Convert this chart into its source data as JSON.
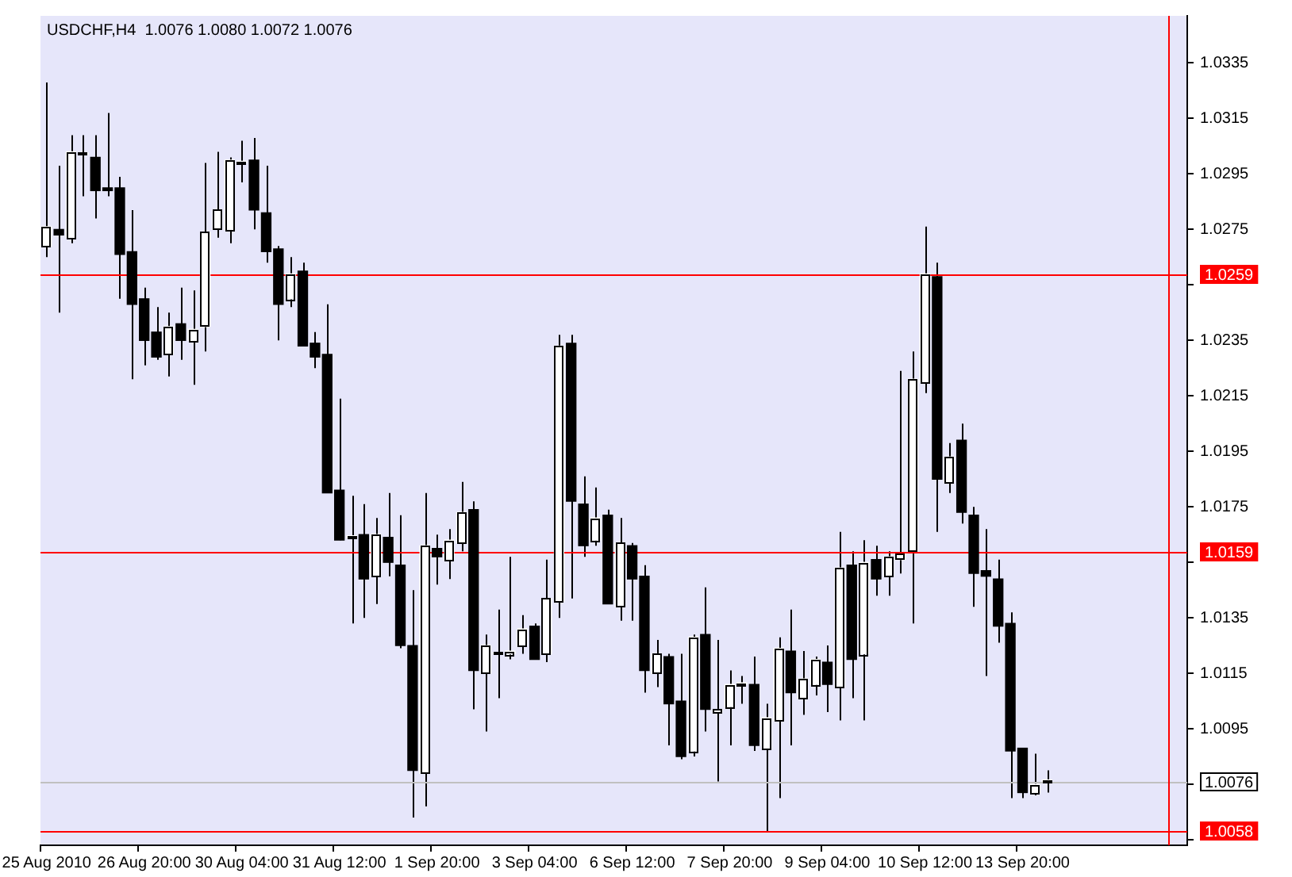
{
  "chart_data": {
    "type": "candlestick",
    "title": "USDCHF,H4  1.0076 1.0080 1.0072 1.0076",
    "categories": [
      "25 Aug 2010",
      null,
      null,
      null,
      null,
      null,
      null,
      null,
      "26 Aug 20:00",
      null,
      null,
      null,
      null,
      null,
      null,
      null,
      "30 Aug 04:00",
      null,
      null,
      null,
      null,
      null,
      null,
      null,
      "31 Aug 12:00",
      null,
      null,
      null,
      null,
      null,
      null,
      null,
      "1 Sep 20:00",
      null,
      null,
      null,
      null,
      null,
      null,
      null,
      "3 Sep 04:00",
      null,
      null,
      null,
      null,
      null,
      null,
      null,
      "6 Sep 12:00",
      null,
      null,
      null,
      null,
      null,
      null,
      null,
      "7 Sep 20:00",
      null,
      null,
      null,
      null,
      null,
      null,
      null,
      "9 Sep 04:00",
      null,
      null,
      null,
      null,
      null,
      null,
      null,
      "10 Sep 12:00",
      null,
      null,
      null,
      null,
      null,
      null,
      null,
      "13 Sep 20:00",
      null,
      null,
      null,
      null,
      null,
      null,
      null,
      null,
      null,
      null,
      null,
      null,
      null
    ],
    "ohlc": [
      [
        1.0269,
        1.0328,
        1.0265,
        1.0276
      ],
      [
        1.0275,
        1.0298,
        1.0245,
        1.0273
      ],
      [
        1.0272,
        1.0309,
        1.027,
        1.0303
      ],
      [
        1.0302,
        1.0309,
        1.0287,
        1.0302
      ],
      [
        1.0301,
        1.0309,
        1.0279,
        1.0289
      ],
      [
        1.029,
        1.0317,
        1.0287,
        1.0289
      ],
      [
        1.029,
        1.0294,
        1.025,
        1.0266
      ],
      [
        1.0267,
        1.0282,
        1.0221,
        1.0248
      ],
      [
        1.025,
        1.0254,
        1.0226,
        1.0235
      ],
      [
        1.0238,
        1.0247,
        1.0228,
        1.0229
      ],
      [
        1.023,
        1.0245,
        1.0222,
        1.024
      ],
      [
        1.0241,
        1.0254,
        1.0228,
        1.0235
      ],
      [
        1.0235,
        1.0253,
        1.0219,
        1.0239
      ],
      [
        1.024,
        1.0299,
        1.0231,
        1.0274
      ],
      [
        1.0275,
        1.0303,
        1.0272,
        1.0282
      ],
      [
        1.0275,
        1.0301,
        1.027,
        1.03
      ],
      [
        1.0299,
        1.0307,
        1.0292,
        1.0299
      ],
      [
        1.03,
        1.0308,
        1.0275,
        1.0282
      ],
      [
        1.0281,
        1.0298,
        1.0263,
        1.0267
      ],
      [
        1.0268,
        1.0269,
        1.0235,
        1.0248
      ],
      [
        1.025,
        1.0265,
        1.0247,
        1.0259
      ],
      [
        1.026,
        1.0263,
        1.0233,
        1.0233
      ],
      [
        1.0234,
        1.0238,
        1.0225,
        1.0229
      ],
      [
        1.023,
        1.0248,
        1.018,
        1.018
      ],
      [
        1.0181,
        1.0214,
        1.0163,
        1.0163
      ],
      [
        1.0164,
        1.0179,
        1.0133,
        1.0164
      ],
      [
        1.0165,
        1.0176,
        1.0135,
        1.0149
      ],
      [
        1.015,
        1.0171,
        1.014,
        1.0165
      ],
      [
        1.0164,
        1.018,
        1.015,
        1.0155
      ],
      [
        1.0154,
        1.0172,
        1.0124,
        1.0125
      ],
      [
        1.0125,
        1.0145,
        1.0063,
        1.008
      ],
      [
        1.0079,
        1.018,
        1.0067,
        1.0161
      ],
      [
        1.016,
        1.0165,
        1.0147,
        1.0157
      ],
      [
        1.0156,
        1.0167,
        1.0149,
        1.0163
      ],
      [
        1.0162,
        1.0184,
        1.0159,
        1.0173
      ],
      [
        1.0174,
        1.0177,
        1.0102,
        1.0116
      ],
      [
        1.0115,
        1.0129,
        1.0094,
        1.0125
      ],
      [
        1.0122,
        1.0138,
        1.0106,
        1.0122
      ],
      [
        1.0122,
        1.0157,
        1.012,
        1.0123
      ],
      [
        1.0125,
        1.0136,
        1.0122,
        1.0131
      ],
      [
        1.0132,
        1.0133,
        1.012,
        1.012
      ],
      [
        1.0122,
        1.0156,
        1.0119,
        1.0142
      ],
      [
        1.0141,
        1.0237,
        1.0135,
        1.0233
      ],
      [
        1.0234,
        1.0237,
        1.0142,
        1.0177
      ],
      [
        1.0176,
        1.0186,
        1.0157,
        1.0161
      ],
      [
        1.0163,
        1.0182,
        1.0161,
        1.0171
      ],
      [
        1.0172,
        1.0174,
        1.014,
        1.014
      ],
      [
        1.0139,
        1.0171,
        1.0134,
        1.0162
      ],
      [
        1.0161,
        1.0162,
        1.0134,
        1.0149
      ],
      [
        1.015,
        1.0154,
        1.0108,
        1.0116
      ],
      [
        1.0115,
        1.0127,
        1.011,
        1.0122
      ],
      [
        1.0121,
        1.0122,
        1.0089,
        1.0104
      ],
      [
        1.0105,
        1.0122,
        1.0084,
        1.0085
      ],
      [
        1.0087,
        1.0129,
        1.0085,
        1.0128
      ],
      [
        1.0129,
        1.0146,
        1.0094,
        1.0102
      ],
      [
        1.0101,
        1.0127,
        1.0076,
        1.0102
      ],
      [
        1.0103,
        1.0116,
        1.0089,
        1.0111
      ],
      [
        1.0111,
        1.0114,
        1.0104,
        1.0111
      ],
      [
        1.0111,
        1.0121,
        1.0087,
        1.0089
      ],
      [
        1.0088,
        1.0104,
        1.0058,
        1.0099
      ],
      [
        1.0098,
        1.0128,
        1.007,
        1.0124
      ],
      [
        1.0123,
        1.0138,
        1.0089,
        1.0108
      ],
      [
        1.0106,
        1.0123,
        1.01,
        1.0113
      ],
      [
        1.0111,
        1.0121,
        1.0107,
        1.012
      ],
      [
        1.0119,
        1.0125,
        1.0101,
        1.0111
      ],
      [
        1.011,
        1.0166,
        1.0098,
        1.0153
      ],
      [
        1.0154,
        1.0159,
        1.0106,
        1.012
      ],
      [
        1.0122,
        1.0163,
        1.0098,
        1.0155
      ],
      [
        1.0156,
        1.0161,
        1.0143,
        1.0149
      ],
      [
        1.015,
        1.0159,
        1.0143,
        1.0157
      ],
      [
        1.0156,
        1.0224,
        1.0151,
        1.0158
      ],
      [
        1.0159,
        1.0231,
        1.0133,
        1.0221
      ],
      [
        1.022,
        1.0276,
        1.0216,
        1.0259
      ],
      [
        1.0258,
        1.0263,
        1.0166,
        1.0185
      ],
      [
        1.0184,
        1.0198,
        1.018,
        1.0193
      ],
      [
        1.0199,
        1.0205,
        1.0169,
        1.0173
      ],
      [
        1.0172,
        1.0175,
        1.0139,
        1.0151
      ],
      [
        1.0152,
        1.0167,
        1.0114,
        1.015
      ],
      [
        1.0149,
        1.0156,
        1.0126,
        1.0132
      ],
      [
        1.0133,
        1.0137,
        1.007,
        1.0087
      ],
      [
        1.0088,
        1.0088,
        1.007,
        1.0072
      ],
      [
        1.0072,
        1.0086,
        1.0071,
        1.0075
      ],
      [
        1.0076,
        1.008,
        1.0072,
        1.0076
      ],
      null,
      null,
      null,
      null,
      null,
      null,
      null,
      null,
      null,
      null,
      null
    ],
    "ylim": [
      1.0053,
      1.0352
    ],
    "yticks": [
      1.0335,
      1.0315,
      1.0295,
      1.0275,
      {
        "value": 1.0255,
        "label": null
      },
      1.0235,
      1.0215,
      1.0195,
      1.0175,
      {
        "value": 1.0155,
        "label": null
      },
      1.0135,
      1.0115,
      1.0095,
      {
        "value": 1.0075,
        "label": null
      },
      {
        "value": 1.0055,
        "label": null
      }
    ],
    "ref_lines": [
      {
        "axis": "y",
        "value": 1.0259,
        "label": "1.0259",
        "color": "#ff0000"
      },
      {
        "axis": "y",
        "value": 1.0159,
        "label": "1.0159",
        "color": "#ff0000"
      },
      {
        "axis": "y",
        "value": 1.0058,
        "label": "1.0058",
        "color": "#ff0000"
      },
      {
        "axis": "y",
        "value": 1.0076,
        "label": "1.0076",
        "color": "#c0c0c0"
      }
    ],
    "grid": false,
    "legend": false
  }
}
